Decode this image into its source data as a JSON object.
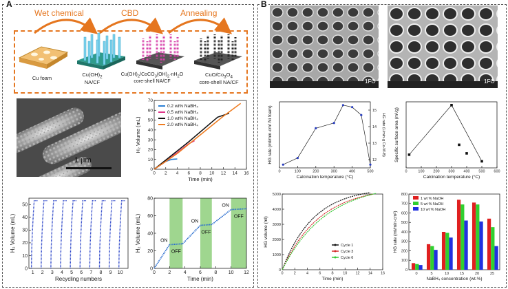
{
  "panelA": {
    "label": "A",
    "steps": [
      "Wet chemical",
      "CBD",
      "Annealing"
    ],
    "stages": [
      {
        "l1": "Cu foam",
        "l2": "",
        "l3": ""
      },
      {
        "l1": "Cu(OH)",
        "sub": "2",
        "l2": "NA/CF",
        "l3": ""
      },
      {
        "l1": "Cu(OH)",
        "sub": "2",
        "l1b": "/CoCO",
        "sub2": "3",
        "l1c": "(OH)",
        "sub3": "2",
        "l1d": "·nH",
        "sub4": "2",
        "l1e": "O",
        "l2": "core-shell  NA/CF",
        "l3": ""
      },
      {
        "l1": "CuO/Co",
        "sub": "3",
        "l1b": "O",
        "sub2": "4",
        "l2": "core-shell  NA/CF",
        "l3": ""
      }
    ],
    "sem_scale": "1 μm",
    "chart_volume": {
      "type": "line",
      "xlabel": "Time (min)",
      "ylabel": "H₂ Volume (mL)",
      "xlim": [
        0,
        16
      ],
      "ylim": [
        0,
        70
      ],
      "xticks": [
        0,
        2,
        4,
        6,
        8,
        10,
        12,
        14,
        16
      ],
      "yticks": [
        0,
        10,
        20,
        30,
        40,
        50,
        60,
        70
      ],
      "series": [
        {
          "name": "0.2 wt% NaBH₄",
          "color": "#2a7fd4",
          "x": [
            0,
            1,
            2,
            3,
            4
          ],
          "y": [
            0,
            4,
            8,
            10,
            10.5
          ]
        },
        {
          "name": "0.5 wt% NaBH₄",
          "color": "#e0368a",
          "x": [
            0,
            2,
            4,
            6,
            7
          ],
          "y": [
            0,
            8,
            17,
            26,
            29
          ]
        },
        {
          "name": "1.0 wt% NaBH₄",
          "color": "#111111",
          "x": [
            0,
            3,
            6,
            9,
            11,
            13
          ],
          "y": [
            0,
            14,
            28,
            43,
            53,
            57
          ]
        },
        {
          "name": "2.0 wt% NaBH₄",
          "color": "#ef7d22",
          "x": [
            0,
            4,
            8,
            12,
            15
          ],
          "y": [
            0,
            16,
            35,
            54,
            67
          ]
        }
      ]
    },
    "chart_recycle": {
      "type": "line",
      "xlabel": "Recycling numbers",
      "ylabel": "H₂ Volume (mL)",
      "cycles": [
        1,
        2,
        3,
        4,
        5,
        6,
        7,
        8,
        9,
        10
      ],
      "ylim": [
        0,
        55
      ],
      "yticks": [
        0,
        10,
        20,
        30,
        40,
        50
      ],
      "max_volume": 53
    },
    "chart_onoff": {
      "type": "line",
      "xlabel": "Time (min)",
      "ylabel": "H₂ Volume (mL)",
      "xlim": [
        0,
        12
      ],
      "ylim": [
        0,
        80
      ],
      "xticks": [
        0,
        2,
        4,
        6,
        8,
        10,
        12
      ],
      "yticks": [
        0,
        20,
        40,
        60,
        80
      ],
      "on_label": "ON",
      "off_label": "OFF",
      "off_windows": [
        [
          2,
          3.7
        ],
        [
          6,
          7.5
        ],
        [
          10,
          12
        ]
      ],
      "x": [
        0,
        2,
        3.7,
        6,
        7.5,
        10,
        12
      ],
      "y": [
        0,
        27,
        28,
        49,
        50,
        67,
        68
      ]
    }
  },
  "panelB": {
    "label": "B",
    "sem_labels": [
      "1FO",
      "1FO"
    ],
    "chart_calc": {
      "type": "line",
      "xlabel": "Calcination temperature (°C)",
      "ylabel": "HG rate (ml/min·cm²  Ni foam)",
      "ylabel2": "HG rate (L/min·g  Co-W-B)",
      "xlim": [
        0,
        500
      ],
      "xticks": [
        0,
        100,
        200,
        300,
        400,
        500
      ],
      "y2ticks": [
        12,
        13,
        14,
        15
      ],
      "x": [
        20,
        100,
        200,
        300,
        350,
        400,
        450,
        500
      ],
      "y": [
        0.05,
        0.15,
        0.6,
        0.68,
        0.95,
        0.92,
        0.8,
        0.05
      ]
    },
    "chart_surface": {
      "type": "scatter",
      "xlabel": "Calcination temperature (°C)",
      "ylabel": "Specific surface area (m²/g)",
      "xlim": [
        0,
        600
      ],
      "xticks": [
        0,
        100,
        200,
        300,
        400,
        500,
        600
      ],
      "x": [
        20,
        300,
        350,
        400,
        500
      ],
      "y": [
        0.2,
        0.95,
        0.35,
        0.22,
        0.1
      ]
    },
    "chart_cycles": {
      "type": "line",
      "xlabel": "Time (min)",
      "ylabel": "HG volume (ml)",
      "xlim": [
        0,
        16
      ],
      "ylim": [
        0,
        5000
      ],
      "xticks": [
        0,
        2,
        4,
        6,
        8,
        10,
        12,
        14,
        16
      ],
      "yticks": [
        0,
        1000,
        2000,
        3000,
        4000,
        5000
      ],
      "series": [
        {
          "name": "Cycle 1",
          "color": "#111111"
        },
        {
          "name": "Cycle 3",
          "color": "#d42a2a"
        },
        {
          "name": "Cycle 6",
          "color": "#32c832"
        }
      ]
    },
    "chart_naoh": {
      "type": "bar",
      "xlabel": "NaBH₄ concentration (wt.%)",
      "ylabel": "HG rate (ml/min·cm²)",
      "categories": [
        "0",
        "5",
        "10",
        "15",
        "20",
        "25"
      ],
      "ylim": [
        0,
        800
      ],
      "yticks": [
        0,
        100,
        200,
        300,
        400,
        500,
        600,
        700,
        800
      ],
      "series": [
        {
          "name": "1 wt % NaOH",
          "color": "#e02020",
          "values": [
            70,
            270,
            400,
            740,
            710,
            540
          ]
        },
        {
          "name": "5 wt % NaOH",
          "color": "#30d030",
          "values": [
            60,
            250,
            390,
            690,
            690,
            450
          ]
        },
        {
          "name": "10 wt % NaOH",
          "color": "#2030e0",
          "values": [
            50,
            210,
            340,
            520,
            510,
            250
          ]
        }
      ]
    }
  }
}
